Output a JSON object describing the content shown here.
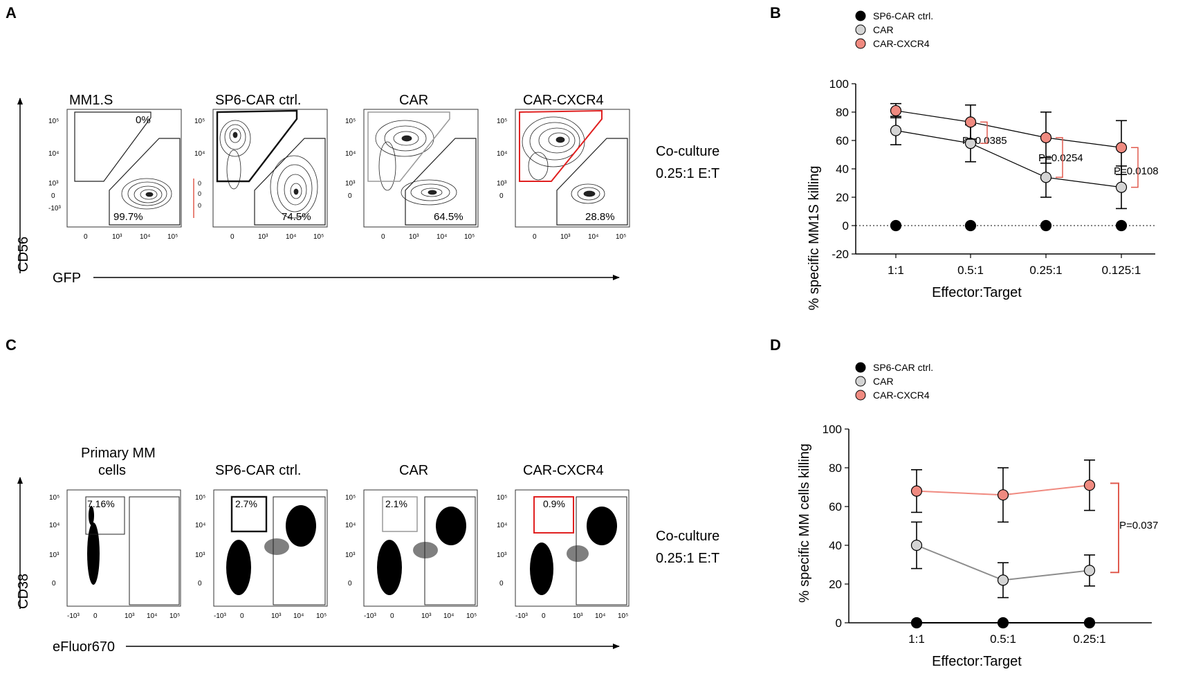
{
  "panels": {
    "A": "A",
    "B": "B",
    "C": "C",
    "D": "D"
  },
  "colors": {
    "black": "#000000",
    "car_fill": "#d4d4d4",
    "cxcr4_fill": "#f08a80",
    "red": "#e05a4e",
    "gray_line": "#8c8c8c"
  },
  "flow_A": {
    "plot_titles": [
      "MM1.S",
      "SP6-CAR ctrl.",
      "CAR",
      "CAR-CXCR4"
    ],
    "upper_gate_pct": [
      "0%",
      "",
      "",
      ""
    ],
    "lower_gate_pct": [
      "99.7%",
      "74.5%",
      "64.5%",
      "28.8%"
    ],
    "y_axis_label": "CD56",
    "x_axis_label": "GFP",
    "y_ticks": [
      "10⁵",
      "10⁴",
      "10³",
      "0",
      "-10³"
    ],
    "x_ticks": [
      "0",
      "10³",
      "10⁴",
      "10⁵"
    ],
    "coculture_line1": "Co-culture",
    "coculture_line2": "0.25:1 E:T"
  },
  "flow_C": {
    "plot_titles": [
      "Primary MM",
      "cells",
      "SP6-CAR ctrl.",
      "CAR",
      "CAR-CXCR4"
    ],
    "gate_pct": [
      "7.16%",
      "2.7%",
      "2.1%",
      "0.9%"
    ],
    "y_axis_label": "CD38",
    "x_axis_label": "eFluor670",
    "y_ticks": [
      "10⁵",
      "10⁴",
      "10³",
      "0"
    ],
    "x_ticks": [
      "-10³",
      "0",
      "10³",
      "10⁴",
      "10⁵"
    ],
    "coculture_line1": "Co-culture",
    "coculture_line2": "0.25:1 E:T"
  },
  "chart_data": [
    {
      "type": "line",
      "panel": "B",
      "title": "",
      "xlabel": "Effector:Target",
      "ylabel": "% specific MM1S killing",
      "categories": [
        "1:1",
        "0.5:1",
        "0.25:1",
        "0.125:1"
      ],
      "ylim": [
        -20,
        100
      ],
      "yticks": [
        -20,
        0,
        20,
        40,
        60,
        80,
        100
      ],
      "legend_position": "top-left",
      "series": [
        {
          "name": "SP6-CAR ctrl.",
          "values": [
            0,
            0,
            0,
            0
          ],
          "errors": [
            0,
            0,
            0,
            0
          ]
        },
        {
          "name": "CAR",
          "values": [
            67,
            58,
            34,
            27
          ],
          "errors": [
            10,
            13,
            14,
            15
          ]
        },
        {
          "name": "CAR-CXCR4",
          "values": [
            81,
            73,
            62,
            55
          ],
          "errors": [
            5,
            12,
            18,
            19
          ]
        }
      ],
      "annotations": [
        "P=0.0385",
        "P=0.0254",
        "P=0.0108"
      ]
    },
    {
      "type": "line",
      "panel": "D",
      "title": "",
      "xlabel": "Effector:Target",
      "ylabel": "% specific MM cells killing",
      "categories": [
        "1:1",
        "0.5:1",
        "0.25:1"
      ],
      "ylim": [
        0,
        100
      ],
      "yticks": [
        0,
        20,
        40,
        60,
        80,
        100
      ],
      "legend_position": "top-left",
      "series": [
        {
          "name": "SP6-CAR ctrl.",
          "values": [
            0,
            0,
            0
          ],
          "errors": [
            0,
            0,
            0
          ]
        },
        {
          "name": "CAR",
          "values": [
            40,
            22,
            27
          ],
          "errors": [
            12,
            9,
            8
          ]
        },
        {
          "name": "CAR-CXCR4",
          "values": [
            68,
            66,
            71
          ],
          "errors": [
            11,
            14,
            13
          ]
        }
      ],
      "annotations": [
        "P=0.037"
      ]
    }
  ]
}
